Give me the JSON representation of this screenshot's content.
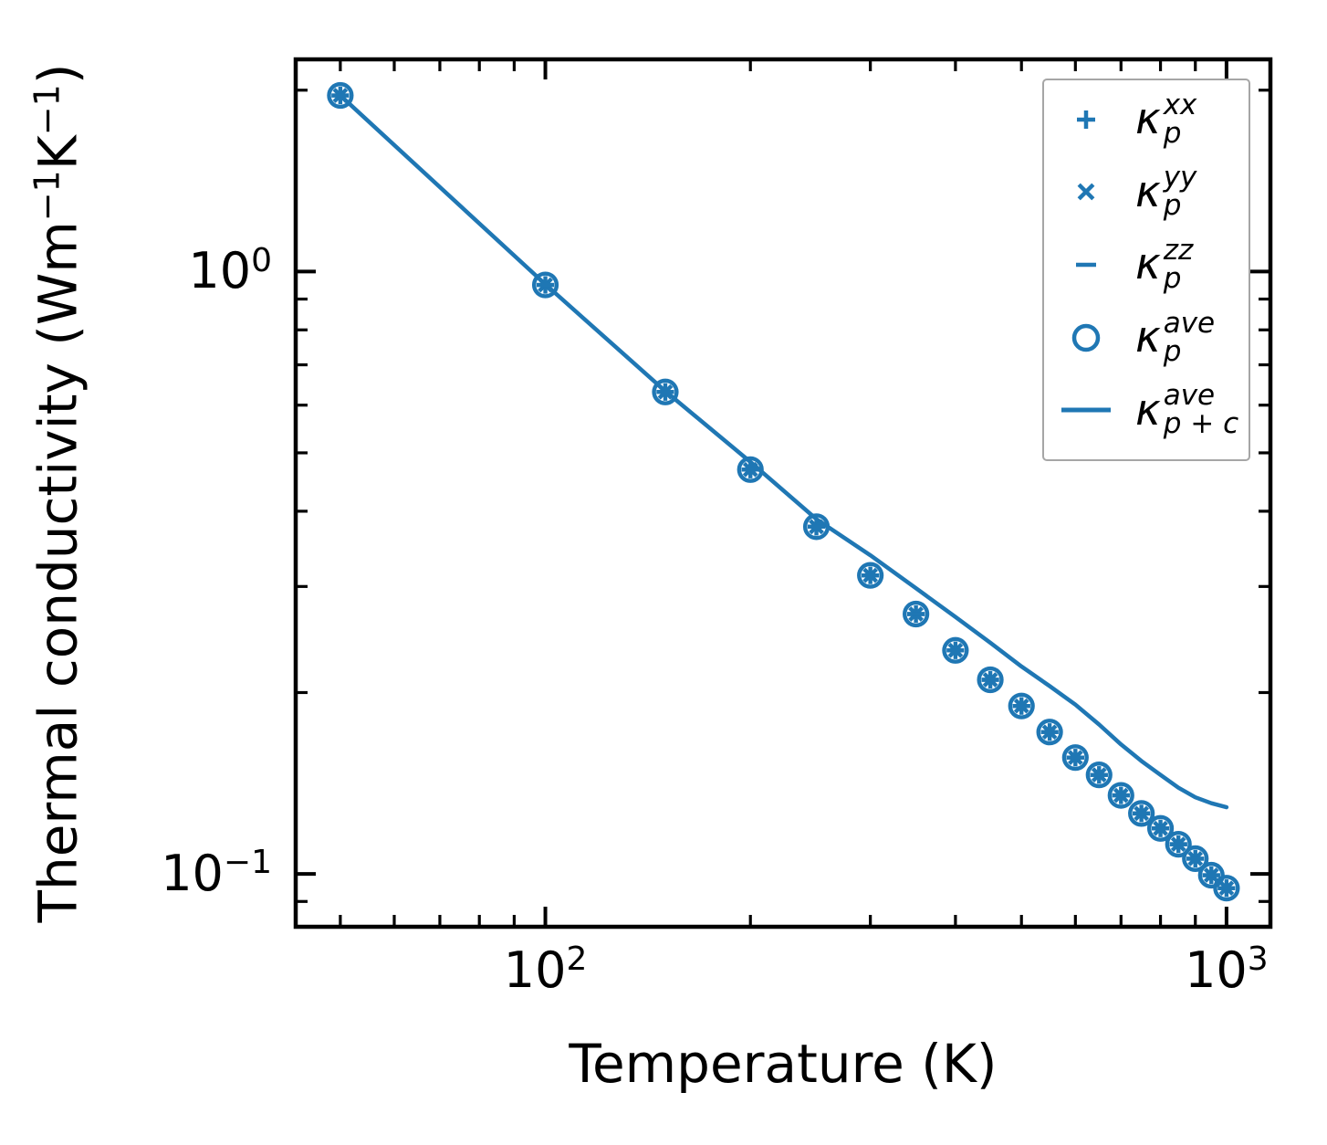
{
  "chart_data": {
    "type": "scatter+line",
    "title": "",
    "xlabel": "Temperature (K)",
    "ylabel_parts": [
      {
        "t": "Thermal conductivity (Wm"
      },
      {
        "sup": "−1"
      },
      {
        "t": "K"
      },
      {
        "sup": "−1"
      },
      {
        "t": ")"
      }
    ],
    "xscale": "log",
    "yscale": "log",
    "xlim": [
      43,
      1160
    ],
    "ylim": [
      0.0817,
      2.25
    ],
    "grid": false,
    "accent_color": "#1f77b4",
    "axis_color": "#000000",
    "x_major_ticks": [
      {
        "value": 100,
        "base": "10",
        "exp": "2"
      },
      {
        "value": 1000,
        "base": "10",
        "exp": "3"
      }
    ],
    "x_minor_ticks": [
      50,
      60,
      70,
      80,
      90,
      200,
      300,
      400,
      500,
      600,
      700,
      800,
      900
    ],
    "y_major_ticks": [
      {
        "value": 1,
        "base": "10",
        "exp": "0"
      },
      {
        "value": 0.1,
        "base": "10",
        "exp": "−1"
      }
    ],
    "y_minor_ticks": [
      2,
      0.9,
      0.8,
      0.7,
      0.6,
      0.5,
      0.4,
      0.3,
      0.2,
      0.09
    ],
    "temperatures": [
      50,
      100,
      150,
      200,
      250,
      300,
      350,
      400,
      450,
      500,
      550,
      600,
      650,
      700,
      750,
      800,
      850,
      900,
      950,
      1000
    ],
    "series": [
      {
        "name": "kappa_p_xx",
        "kind": "scatter",
        "marker": "plus",
        "values": [
          1.96,
          0.95,
          0.631,
          0.469,
          0.377,
          0.313,
          0.27,
          0.235,
          0.21,
          0.19,
          0.172,
          0.156,
          0.146,
          0.135,
          0.126,
          0.119,
          0.112,
          0.106,
          0.0995,
          0.0947
        ]
      },
      {
        "name": "kappa_p_yy",
        "kind": "scatter",
        "marker": "cross",
        "values": [
          1.96,
          0.95,
          0.631,
          0.469,
          0.377,
          0.313,
          0.27,
          0.235,
          0.21,
          0.19,
          0.172,
          0.156,
          0.146,
          0.135,
          0.126,
          0.119,
          0.112,
          0.106,
          0.0995,
          0.0947
        ]
      },
      {
        "name": "kappa_p_zz",
        "kind": "scatter",
        "marker": "hline",
        "values": [
          1.96,
          0.95,
          0.631,
          0.469,
          0.377,
          0.313,
          0.27,
          0.235,
          0.21,
          0.19,
          0.172,
          0.156,
          0.146,
          0.135,
          0.126,
          0.119,
          0.112,
          0.106,
          0.0995,
          0.0947
        ]
      },
      {
        "name": "kappa_p_ave",
        "kind": "scatter",
        "marker": "circle",
        "values": [
          1.96,
          0.95,
          0.631,
          0.469,
          0.377,
          0.313,
          0.27,
          0.235,
          0.21,
          0.19,
          0.172,
          0.156,
          0.146,
          0.135,
          0.126,
          0.119,
          0.112,
          0.106,
          0.0995,
          0.0947
        ]
      },
      {
        "name": "kappa_p_plus_c_ave",
        "kind": "line",
        "marker": "line",
        "values": [
          1.96,
          0.952,
          0.633,
          0.483,
          0.388,
          0.338,
          0.298,
          0.267,
          0.242,
          0.221,
          0.205,
          0.191,
          0.177,
          0.164,
          0.154,
          0.146,
          0.139,
          0.134,
          0.131,
          0.129
        ]
      }
    ],
    "legend": {
      "position": "upper right",
      "entries": [
        {
          "marker": "plus",
          "base": "κ",
          "sup": "xx",
          "sub": "p"
        },
        {
          "marker": "cross",
          "base": "κ",
          "sup": "yy",
          "sub": "p"
        },
        {
          "marker": "hline",
          "base": "κ",
          "sup": "zz",
          "sub": "p"
        },
        {
          "marker": "circle",
          "base": "κ",
          "sup": "ave",
          "sub": "p"
        },
        {
          "marker": "line",
          "base": "κ",
          "sup": "ave",
          "sub": "p + c"
        }
      ]
    }
  }
}
